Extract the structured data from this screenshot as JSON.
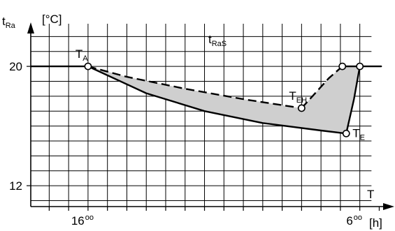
{
  "chart_data": {
    "type": "line",
    "y_label": "t",
    "y_label_sub": "Ra",
    "y_unit": "[°C]",
    "x_label": "T",
    "x_unit": "[h]",
    "y_ticks": [
      {
        "value": 20,
        "label": "20"
      },
      {
        "value": 12,
        "label": "12"
      }
    ],
    "x_ticks": [
      {
        "hour": 16,
        "label": "16",
        "sup": "oo"
      },
      {
        "hour": 30,
        "label": "6",
        "sup": "oo"
      }
    ],
    "ylim": [
      10.6,
      23.0
    ],
    "xlim": [
      13.05,
      31.2
    ],
    "setpoint_label": {
      "main": "t",
      "sub": "RaS"
    },
    "series": [
      {
        "style": "solid",
        "points": [
          [
            13.1,
            20
          ],
          [
            16,
            20
          ],
          [
            19,
            18.2
          ],
          [
            22,
            17.0
          ],
          [
            25,
            16.2
          ],
          [
            28,
            15.7
          ],
          [
            29.3,
            15.5
          ]
        ]
      },
      {
        "style": "dashed",
        "points": [
          [
            16,
            20
          ],
          [
            18,
            19.3
          ],
          [
            21,
            18.5
          ],
          [
            24,
            17.8
          ],
          [
            26,
            17.4
          ],
          [
            27,
            17.2
          ]
        ]
      },
      {
        "style": "dashed",
        "points": [
          [
            27,
            17.2
          ],
          [
            28.4,
            19.2
          ],
          [
            29.1,
            20
          ]
        ]
      },
      {
        "style": "solid",
        "points": [
          [
            29.3,
            15.5
          ],
          [
            29.7,
            17.8
          ],
          [
            30,
            20
          ],
          [
            31.1,
            20
          ]
        ]
      },
      {
        "style": "solid",
        "points": [
          [
            29.1,
            20
          ],
          [
            30,
            20
          ]
        ]
      }
    ],
    "shaded_region": [
      [
        16,
        20
      ],
      [
        18,
        19.3
      ],
      [
        21,
        18.5
      ],
      [
        24,
        17.8
      ],
      [
        26,
        17.4
      ],
      [
        27,
        17.2
      ],
      [
        28.4,
        19.2
      ],
      [
        29.1,
        20
      ],
      [
        30,
        20
      ],
      [
        29.7,
        17.8
      ],
      [
        29.3,
        15.5
      ],
      [
        28,
        15.7
      ],
      [
        25,
        16.2
      ],
      [
        22,
        17.0
      ],
      [
        19,
        18.2
      ]
    ],
    "markers": [
      {
        "id": "ta",
        "x": 16,
        "y": 20,
        "label": "T",
        "sub": "A",
        "anchor": "above-left"
      },
      {
        "id": "teh",
        "x": 27,
        "y": 17.2,
        "label": "T",
        "sub": "EH",
        "anchor": "above-left"
      },
      {
        "id": "te",
        "x": 29.3,
        "y": 15.5,
        "label": "T",
        "sub": "E",
        "anchor": "right"
      },
      {
        "id": "recover1",
        "x": 29.1,
        "y": 20,
        "label": "",
        "sub": "",
        "anchor": "none"
      },
      {
        "id": "recover2",
        "x": 30,
        "y": 20,
        "label": "",
        "sub": "",
        "anchor": "none"
      }
    ],
    "grid": true,
    "fill_color": "#cfcfcf",
    "line_color": "#000000"
  }
}
